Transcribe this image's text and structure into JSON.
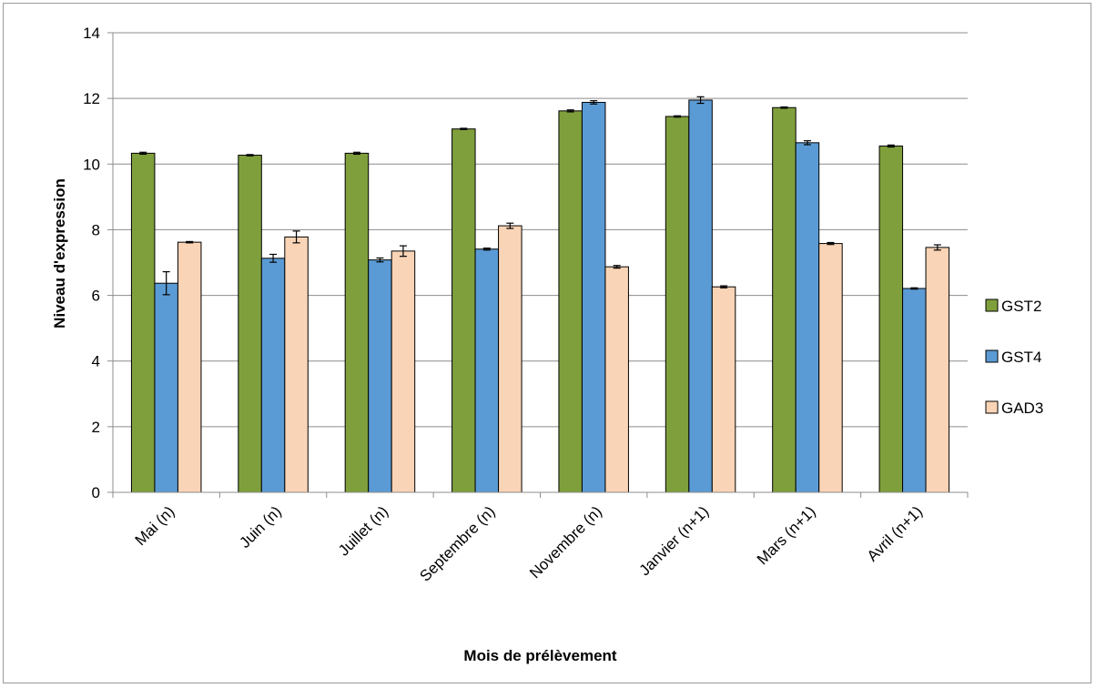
{
  "chart_data": {
    "type": "bar",
    "title": "",
    "xlabel": "Mois de prélèvement",
    "ylabel": "Niveau d'expression",
    "ylim": [
      0,
      14
    ],
    "yticks": [
      0,
      2,
      4,
      6,
      8,
      10,
      12,
      14
    ],
    "grid": true,
    "legend_position": "right",
    "categories": [
      "Mai (n)",
      "Juin  (n)",
      "Juillet (n)",
      "Septembre (n)",
      "Novembre (n)",
      "Janvier (n+1)",
      "Mars (n+1)",
      "Avril (n+1)"
    ],
    "series": [
      {
        "name": "GST2",
        "color": "#7F9F3C",
        "values": [
          10.33,
          10.27,
          10.33,
          11.07,
          11.62,
          11.45,
          11.72,
          10.55
        ],
        "errors": [
          0.03,
          0.02,
          0.03,
          0.02,
          0.03,
          0.02,
          0.02,
          0.03
        ]
      },
      {
        "name": "GST4",
        "color": "#5B9BD5",
        "values": [
          6.37,
          7.13,
          7.08,
          7.41,
          11.88,
          11.95,
          10.65,
          6.21
        ],
        "errors": [
          0.35,
          0.12,
          0.06,
          0.03,
          0.05,
          0.1,
          0.06,
          0.02
        ]
      },
      {
        "name": "GAD3",
        "color": "#FAD4B6",
        "values": [
          7.62,
          7.78,
          7.35,
          8.12,
          6.87,
          6.26,
          7.58,
          7.46
        ],
        "errors": [
          0.02,
          0.18,
          0.16,
          0.08,
          0.04,
          0.03,
          0.03,
          0.08
        ]
      }
    ]
  }
}
